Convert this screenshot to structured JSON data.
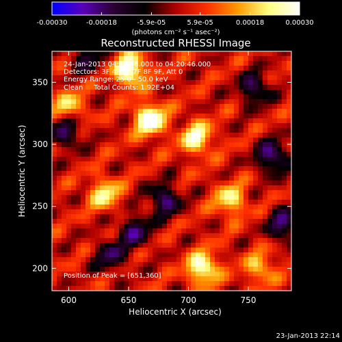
{
  "chart_data": {
    "type": "heatmap",
    "title": "Reconstructed RHESSI Image",
    "xlabel": "Heliocentric X (arcsec)",
    "ylabel": "Heliocentric Y (arcsec)",
    "xlim": [
      586,
      786
    ],
    "ylim": [
      182,
      375
    ],
    "x_ticks": [
      "600",
      "650",
      "700",
      "750"
    ],
    "y_ticks": [
      "200",
      "250",
      "300",
      "350"
    ],
    "x_tick_values": [
      600,
      650,
      700,
      750
    ],
    "y_tick_values": [
      200,
      250,
      300,
      350
    ],
    "colorbar": {
      "tick_labels": [
        "-0.00030",
        "-0.00018",
        "-5.9e-05",
        "5.9e-05",
        "0.00018",
        "0.00030"
      ],
      "unit_label": "(photons cm⁻² s⁻¹ asec⁻²)",
      "range": [
        -0.0003,
        0.0003
      ],
      "colors": [
        "#0000ff",
        "#5a00b8",
        "#2a0030",
        "#000000",
        "#b00000",
        "#ff3000",
        "#ff9a00",
        "#ffff80",
        "#ffffff"
      ]
    },
    "annotations": [
      "24-Jan-2013 04:14:46.000 to 04:20:46.000",
      "Detectors: 3F 4F 6F 7F 8F 9F, Att 0",
      "Energy Range: 25.0 - 50.0 keV",
      "Clean     Total Counts: 1.92E+04"
    ],
    "peak_label": "Position of Peak = [651,360]",
    "hotspots": [
      {
        "x": 668,
        "y": 320,
        "value": 0.0003
      },
      {
        "x": 651,
        "y": 360,
        "value": 0.0003
      },
      {
        "x": 712,
        "y": 200,
        "value": 0.00027
      },
      {
        "x": 707,
        "y": 305,
        "value": 0.00024
      },
      {
        "x": 630,
        "y": 260,
        "value": 0.0002
      },
      {
        "x": 735,
        "y": 255,
        "value": 0.0002
      },
      {
        "x": 600,
        "y": 330,
        "value": 0.00018
      },
      {
        "x": 760,
        "y": 200,
        "value": 0.00016
      }
    ],
    "coldspots": [
      {
        "x": 598,
        "y": 310,
        "value": -0.0002
      },
      {
        "x": 680,
        "y": 255,
        "value": -0.00022
      },
      {
        "x": 655,
        "y": 230,
        "value": -0.0002
      },
      {
        "x": 635,
        "y": 210,
        "value": -0.00018
      },
      {
        "x": 770,
        "y": 290,
        "value": -0.00024
      },
      {
        "x": 755,
        "y": 345,
        "value": -0.0002
      },
      {
        "x": 780,
        "y": 235,
        "value": -0.00022
      },
      {
        "x": 615,
        "y": 370,
        "value": -0.00015
      }
    ]
  },
  "footer_date": "23-Jan-2013 22:14"
}
